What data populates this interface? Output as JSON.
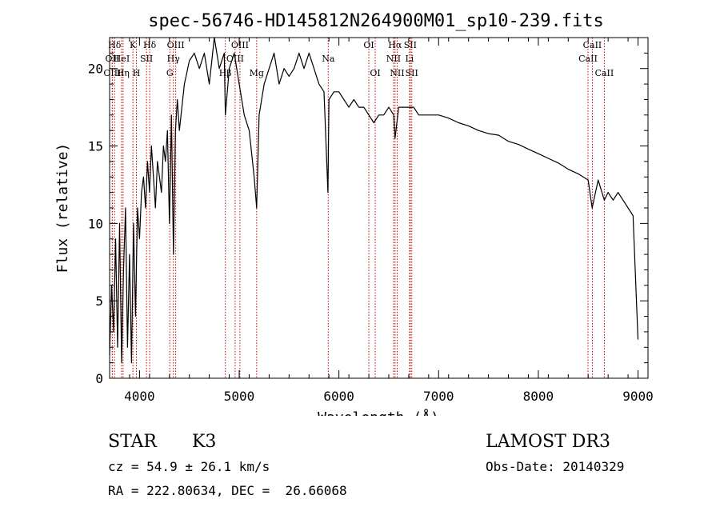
{
  "chart_data": {
    "type": "line",
    "title": "spec-56746-HD145812N264900M01_sp10-239.fits",
    "xlabel": "Wavelength (Å)",
    "ylabel": "Flux (relative)",
    "xlim": [
      3700,
      9100
    ],
    "ylim": [
      0,
      22
    ],
    "xticks": [
      4000,
      5000,
      6000,
      7000,
      8000,
      9000
    ],
    "yticks": [
      0,
      5,
      10,
      15,
      20
    ],
    "grid": false,
    "line_color": "#000000",
    "marker_color": "#cc0000",
    "series": [
      {
        "x": [
          3700,
          3720,
          3740,
          3760,
          3780,
          3800,
          3820,
          3840,
          3860,
          3880,
          3900,
          3920,
          3940,
          3960,
          3980,
          4000,
          4020,
          4040,
          4060,
          4080,
          4100,
          4120,
          4140,
          4160,
          4180,
          4200,
          4220,
          4240,
          4260,
          4280,
          4300,
          4320,
          4340,
          4360,
          4380,
          4400,
          4450,
          4500,
          4550,
          4600,
          4650,
          4700,
          4750,
          4800,
          4850,
          4861,
          4900,
          4950,
          5000,
          5050,
          5100,
          5150,
          5175,
          5200,
          5250,
          5300,
          5350,
          5400,
          5450,
          5500,
          5550,
          5600,
          5650,
          5700,
          5750,
          5800,
          5850,
          5890,
          5900,
          5950,
          6000,
          6050,
          6100,
          6150,
          6200,
          6250,
          6300,
          6350,
          6400,
          6450,
          6500,
          6550,
          6563,
          6600,
          6650,
          6700,
          6750,
          6800,
          6850,
          6900,
          6950,
          7000,
          7100,
          7200,
          7300,
          7400,
          7500,
          7600,
          7700,
          7800,
          7900,
          8000,
          8100,
          8200,
          8300,
          8400,
          8500,
          8540,
          8600,
          8662,
          8700,
          8750,
          8800,
          8850,
          8900,
          8950,
          9000
        ],
        "y": [
          1.5,
          6,
          3,
          9,
          2,
          10,
          1,
          7,
          11,
          2,
          8,
          1,
          10,
          4,
          11,
          9,
          12,
          13,
          11,
          14,
          12,
          15,
          13,
          11,
          14,
          13,
          12,
          15,
          14,
          16,
          10,
          17,
          8,
          16,
          18,
          16,
          19,
          20.5,
          21,
          20,
          21,
          19,
          22,
          20,
          21,
          17,
          20,
          21,
          19,
          17,
          16,
          13,
          11,
          17,
          19,
          20,
          21,
          19,
          20,
          19.5,
          20,
          21,
          20,
          21,
          20,
          19,
          18.5,
          12,
          18,
          18.5,
          18.5,
          18,
          17.5,
          18,
          17.5,
          17.5,
          17,
          16.5,
          17,
          17,
          17.5,
          17,
          15.5,
          17.5,
          17.5,
          17.5,
          17.5,
          17,
          17,
          17,
          17,
          17,
          16.8,
          16.5,
          16.3,
          16,
          15.8,
          15.7,
          15.3,
          15.1,
          14.8,
          14.5,
          14.2,
          13.9,
          13.5,
          13.2,
          12.8,
          11,
          12.8,
          11.5,
          12,
          11.5,
          12,
          11.5,
          11,
          10.5,
          2.5
        ]
      }
    ],
    "line_markers": [
      {
        "name": "Hδ",
        "x": 3750,
        "row": 0
      },
      {
        "name": "OII",
        "x": 3727,
        "row": 1
      },
      {
        "name": "OIII",
        "x": 3727,
        "row": 2
      },
      {
        "name": "K",
        "x": 3934,
        "row": 0
      },
      {
        "name": "H",
        "x": 3969,
        "row": 2
      },
      {
        "name": "HeI",
        "x": 3820,
        "row": 1
      },
      {
        "name": "Hη",
        "x": 3835,
        "row": 2
      },
      {
        "name": "SII",
        "x": 4070,
        "row": 1
      },
      {
        "name": "Hδ",
        "x": 4102,
        "row": 0
      },
      {
        "name": "OIII",
        "x": 4363,
        "row": 0
      },
      {
        "name": "Hγ",
        "x": 4340,
        "row": 1
      },
      {
        "name": "G",
        "x": 4304,
        "row": 2
      },
      {
        "name": "Hβ",
        "x": 4861,
        "row": 2
      },
      {
        "name": "OIII",
        "x": 5007,
        "row": 0
      },
      {
        "name": "OIII",
        "x": 4959,
        "row": 1
      },
      {
        "name": "Mg",
        "x": 5175,
        "row": 2
      },
      {
        "name": "Na",
        "x": 5893,
        "row": 1
      },
      {
        "name": "OI",
        "x": 6300,
        "row": 0
      },
      {
        "name": "OI",
        "x": 6364,
        "row": 2
      },
      {
        "name": "Hα",
        "x": 6563,
        "row": 0
      },
      {
        "name": "NII",
        "x": 6548,
        "row": 1
      },
      {
        "name": "NII",
        "x": 6584,
        "row": 2
      },
      {
        "name": "SII",
        "x": 6716,
        "row": 0
      },
      {
        "name": "Li",
        "x": 6708,
        "row": 1
      },
      {
        "name": "SII",
        "x": 6731,
        "row": 2
      },
      {
        "name": "CaII",
        "x": 8542,
        "row": 0
      },
      {
        "name": "CaII",
        "x": 8498,
        "row": 1
      },
      {
        "name": "CaII",
        "x": 8662,
        "row": 2
      }
    ]
  },
  "info": {
    "object_class": "STAR",
    "subclass": "K3",
    "survey": "LAMOST DR3",
    "cz": "cz = 54.9 ± 26.1 km/s",
    "obs_date": "Obs-Date: 20140329",
    "coords": "RA = 222.80634, DEC =  26.66068"
  }
}
